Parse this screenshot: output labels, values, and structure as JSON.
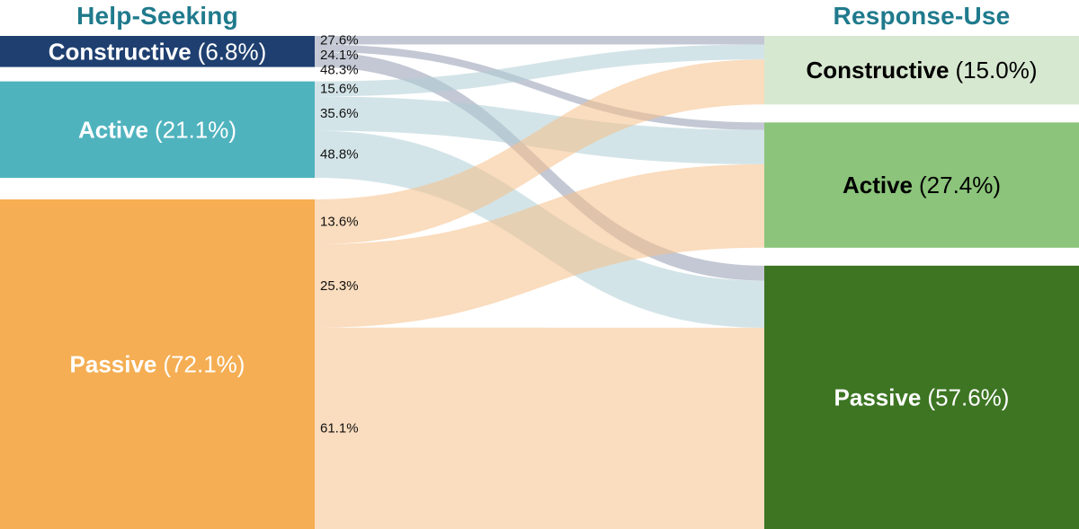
{
  "chart_data": {
    "type": "sankey",
    "left_title": "Help-Seeking",
    "right_title": "Response-Use",
    "title_color": "#1f7a8c",
    "flow_label_color": "#111111",
    "left_nodes": [
      {
        "id": "constructive",
        "label": "Constructive",
        "pct": 6.8,
        "pct_label": "(6.8%)",
        "color": "#1e3f70",
        "text_color": "#ffffff"
      },
      {
        "id": "active",
        "label": "Active",
        "pct": 21.1,
        "pct_label": "(21.1%)",
        "color": "#4fb3be",
        "text_color": "#ffffff"
      },
      {
        "id": "passive",
        "label": "Passive",
        "pct": 72.1,
        "pct_label": "(72.1%)",
        "color": "#f5ae53",
        "text_color": "#ffffff"
      }
    ],
    "right_nodes": [
      {
        "id": "constructive",
        "label": "Constructive",
        "pct": 15.0,
        "pct_label": "(15.0%)",
        "color": "#d7e8d0",
        "text_color": "#000000"
      },
      {
        "id": "active",
        "label": "Active",
        "pct": 27.4,
        "pct_label": "(27.4%)",
        "color": "#8bc47a",
        "text_color": "#000000"
      },
      {
        "id": "passive",
        "label": "Passive",
        "pct": 57.6,
        "pct_label": "(57.6%)",
        "color": "#3d7523",
        "text_color": "#ffffff"
      }
    ],
    "flows": [
      {
        "from": 0,
        "to": 0,
        "pct_of_source": 27.6,
        "label": "27.6%"
      },
      {
        "from": 0,
        "to": 1,
        "pct_of_source": 24.1,
        "label": "24.1%"
      },
      {
        "from": 0,
        "to": 2,
        "pct_of_source": 48.3,
        "label": "48.3%"
      },
      {
        "from": 1,
        "to": 0,
        "pct_of_source": 15.6,
        "label": "15.6%"
      },
      {
        "from": 1,
        "to": 1,
        "pct_of_source": 35.6,
        "label": "35.6%"
      },
      {
        "from": 1,
        "to": 2,
        "pct_of_source": 48.8,
        "label": "48.8%"
      },
      {
        "from": 2,
        "to": 0,
        "pct_of_source": 13.6,
        "label": "13.6%"
      },
      {
        "from": 2,
        "to": 1,
        "pct_of_source": 25.3,
        "label": "25.3%"
      },
      {
        "from": 2,
        "to": 2,
        "pct_of_source": 61.1,
        "label": "61.1%"
      }
    ],
    "flow_colors": [
      "#929BB1",
      "#AFCED5",
      "#F6BF89"
    ],
    "flow_opacity": 0.55,
    "legend": "none",
    "grid": "off"
  }
}
